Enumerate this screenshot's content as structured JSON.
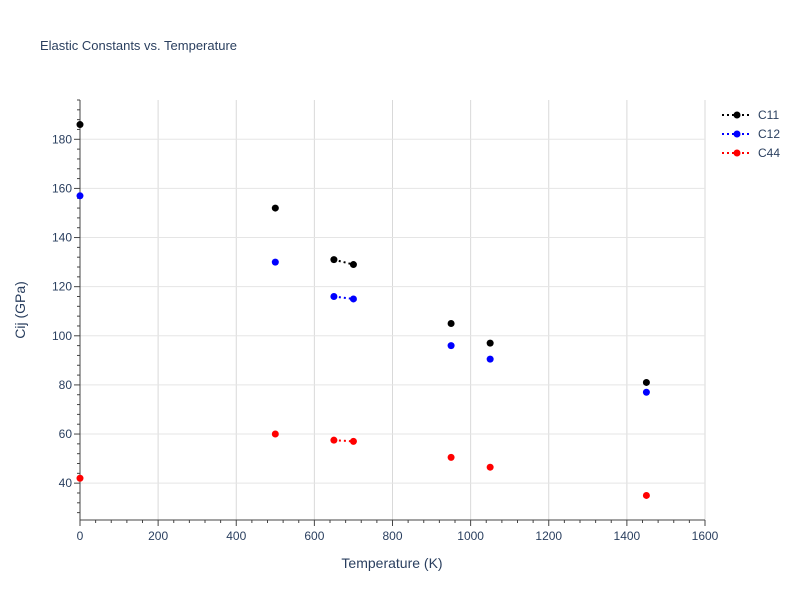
{
  "chart_data": {
    "type": "scatter",
    "title": "Elastic Constants vs. Temperature",
    "xlabel": "Temperature (K)",
    "ylabel": "Cij (GPa)",
    "xlim": [
      0,
      1600
    ],
    "ylim": [
      25,
      196
    ],
    "x_ticks": [
      0,
      200,
      400,
      600,
      800,
      1000,
      1200,
      1400,
      1600
    ],
    "y_ticks": [
      40,
      60,
      80,
      100,
      120,
      140,
      160,
      180
    ],
    "grid": true,
    "legend_position": "top-right",
    "x": [
      0,
      500,
      650,
      700,
      950,
      1050,
      1450
    ],
    "series": [
      {
        "name": "C11",
        "color": "#000000",
        "values": [
          186,
          152,
          131,
          129,
          105,
          97,
          81
        ],
        "dotted_segments": [
          [
            2,
            3
          ]
        ]
      },
      {
        "name": "C12",
        "color": "#0000ff",
        "values": [
          157,
          130,
          116,
          115,
          96,
          90.5,
          77
        ],
        "dotted_segments": [
          [
            2,
            3
          ]
        ]
      },
      {
        "name": "C44",
        "color": "#ff0000",
        "values": [
          42,
          60,
          57.5,
          57,
          50.5,
          46.5,
          35
        ],
        "dotted_segments": [
          [
            2,
            3
          ]
        ]
      }
    ]
  }
}
